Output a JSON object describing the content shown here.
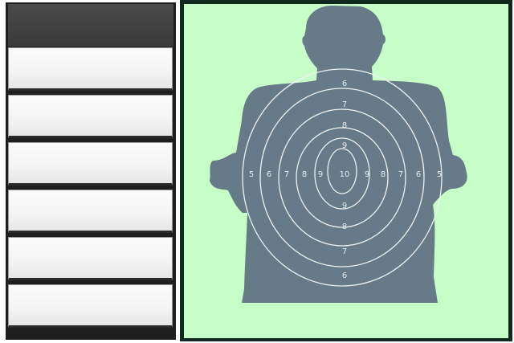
{
  "sidebar": {
    "header_label": "",
    "slots": [
      {
        "label": ""
      },
      {
        "label": ""
      },
      {
        "label": ""
      },
      {
        "label": ""
      },
      {
        "label": ""
      },
      {
        "label": ""
      }
    ]
  },
  "target": {
    "silhouette_color": "#667a87",
    "background_color": "#c7fdc7",
    "ring_numbers": {
      "top": [
        "6",
        "7",
        "8",
        "9"
      ],
      "center": "10",
      "bottom": [
        "9",
        "8",
        "7",
        "6"
      ],
      "left": [
        "5",
        "6",
        "7",
        "8",
        "9"
      ],
      "right": [
        "9",
        "8",
        "7",
        "6",
        "5"
      ]
    }
  }
}
